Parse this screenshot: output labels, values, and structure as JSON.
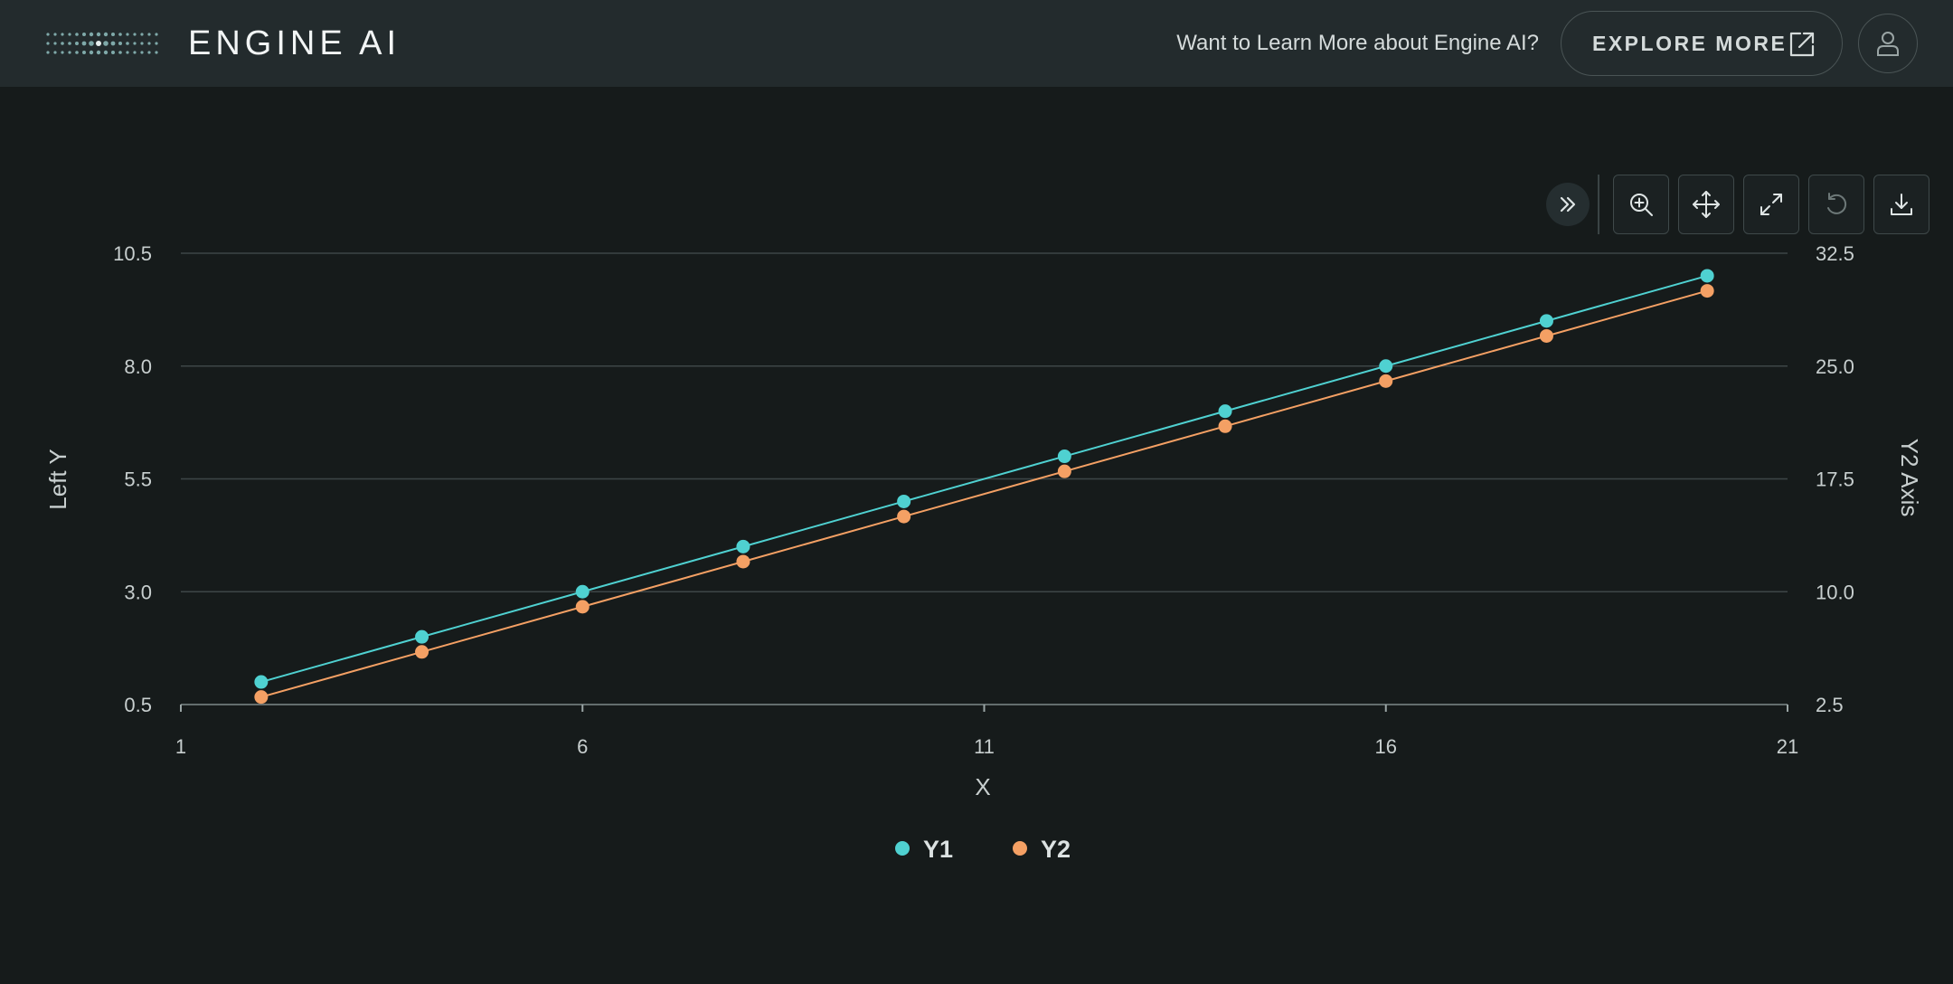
{
  "header": {
    "brand": "ENGINE AI",
    "promo_text": "Want to Learn More about Engine AI?",
    "explore_label": "EXPLORE MORE"
  },
  "toolbar": {
    "buttons": [
      "expand-icon",
      "zoom-in-icon",
      "pan-icon",
      "fullscreen-icon",
      "reset-icon",
      "download-icon"
    ]
  },
  "colors": {
    "y1": "#4fd1d1",
    "y2": "#f4a064",
    "grid": "#3d4647",
    "background": "#161b1b"
  },
  "chart_data": {
    "type": "line",
    "title": "",
    "xlabel": "X",
    "ylabel": "Left Y",
    "y2label": "Y2 Axis",
    "xlim": [
      1,
      21
    ],
    "ylim": [
      0.5,
      10.5
    ],
    "y2lim": [
      2.5,
      32.5
    ],
    "x_ticks": [
      "1",
      "6",
      "11",
      "16",
      "21"
    ],
    "y_ticks": [
      "0.5",
      "3.0",
      "5.5",
      "8.0",
      "10.5"
    ],
    "y2_ticks": [
      "2.5",
      "10.0",
      "17.5",
      "25.0",
      "32.5"
    ],
    "grid": true,
    "legend_position": "bottom-center",
    "series": [
      {
        "name": "Y1",
        "axis": "left",
        "x": [
          2,
          4,
          6,
          8,
          10,
          12,
          14,
          16,
          18,
          20
        ],
        "values": [
          1.0,
          2.0,
          3.0,
          4.0,
          5.0,
          6.0,
          7.0,
          8.0,
          9.0,
          10.0
        ]
      },
      {
        "name": "Y2",
        "axis": "right",
        "x": [
          2,
          4,
          6,
          8,
          10,
          12,
          14,
          16,
          18,
          20
        ],
        "values": [
          3.0,
          6.0,
          9.0,
          12.0,
          15.0,
          18.0,
          21.0,
          24.0,
          27.0,
          30.0
        ]
      }
    ]
  }
}
